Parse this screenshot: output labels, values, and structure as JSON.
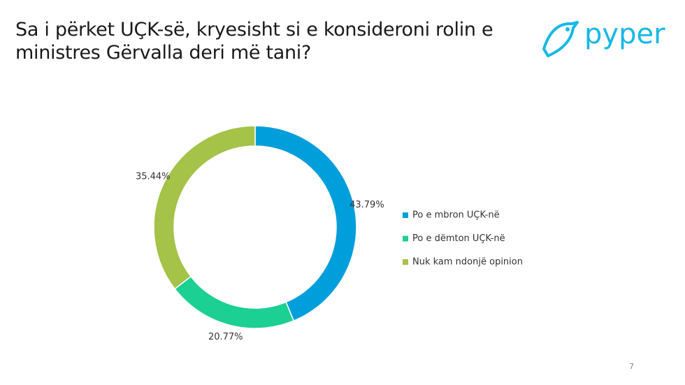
{
  "chart_data": {
    "type": "donut",
    "title": "Sa i përket UÇK-së, kryesisht si e konsideroni rolin e ministres Gërvalla deri më tani?",
    "categories": [
      "Po e mbron UÇK-në",
      "Po e dëmton UÇK-në",
      "Nuk kam ndonjë opinion"
    ],
    "values": [
      43.79,
      20.77,
      35.44
    ],
    "value_labels": [
      "43.79%",
      "20.77%",
      "35.44%"
    ],
    "colors": [
      "#009fdb",
      "#1ccf93",
      "#a5c249"
    ],
    "legend": "right"
  },
  "logo": "pyper",
  "page_number": 7
}
